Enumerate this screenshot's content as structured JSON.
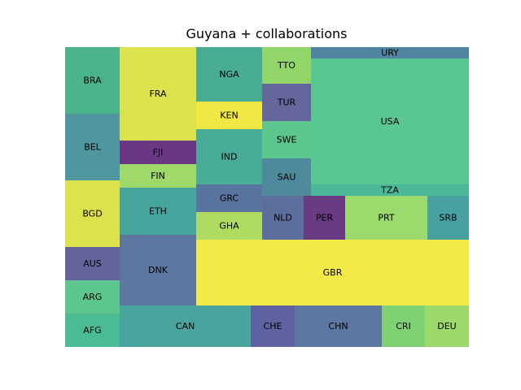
{
  "chart_data": {
    "type": "treemap",
    "title": "Guyana + collaborations",
    "cells": [
      {
        "label": "BRA",
        "value": 30,
        "color": "#4ab38c"
      },
      {
        "label": "BEL",
        "value": 30,
        "color": "#4f969e"
      },
      {
        "label": "BGD",
        "value": 30,
        "color": "#dbe24c"
      },
      {
        "label": "AUS",
        "value": 15,
        "color": "#63649c"
      },
      {
        "label": "ARG",
        "value": 15,
        "color": "#5cc68f"
      },
      {
        "label": "AFG",
        "value": 15,
        "color": "#4bbb93"
      },
      {
        "label": "FRA",
        "value": 43,
        "color": "#dbe24c"
      },
      {
        "label": "FJI",
        "value": 11,
        "color": "#6a3882"
      },
      {
        "label": "FIN",
        "value": 11,
        "color": "#9ed96a"
      },
      {
        "label": "ETH",
        "value": 22,
        "color": "#47a49c"
      },
      {
        "label": "DNK",
        "value": 33,
        "color": "#5e77a1"
      },
      {
        "label": "NGA",
        "value": 20,
        "color": "#47ac93"
      },
      {
        "label": "KEN",
        "value": 10,
        "color": "#f1e745"
      },
      {
        "label": "IND",
        "value": 20,
        "color": "#47ad98"
      },
      {
        "label": "GRC",
        "value": 10,
        "color": "#5a74a0"
      },
      {
        "label": "GHA",
        "value": 10,
        "color": "#afdc60"
      },
      {
        "label": "TTO",
        "value": 10,
        "color": "#92d66a"
      },
      {
        "label": "TUR",
        "value": 10,
        "color": "#65679c"
      },
      {
        "label": "SWE",
        "value": 10,
        "color": "#5dc68f"
      },
      {
        "label": "SAU",
        "value": 10,
        "color": "#4e8a9c"
      },
      {
        "label": "URY",
        "value": 5,
        "color": "#5184a1"
      },
      {
        "label": "USA",
        "value": 65,
        "color": "#5ac692"
      },
      {
        "label": "TZA",
        "value": 5,
        "color": "#4ab899"
      },
      {
        "label": "NLD",
        "value": 10,
        "color": "#5c6e9c"
      },
      {
        "label": "PER",
        "value": 10,
        "color": "#6a3a82"
      },
      {
        "label": "PRT",
        "value": 20,
        "color": "#9bda6c"
      },
      {
        "label": "SRB",
        "value": 10,
        "color": "#48a0a0"
      },
      {
        "label": "GBR",
        "value": 60,
        "color": "#f4ea47"
      },
      {
        "label": "CAN",
        "value": 30,
        "color": "#4aa49e"
      },
      {
        "label": "CHE",
        "value": 10,
        "color": "#5e62a0"
      },
      {
        "label": "CHN",
        "value": 20,
        "color": "#5e76a2"
      },
      {
        "label": "CRI",
        "value": 10,
        "color": "#7fd274"
      },
      {
        "label": "DEU",
        "value": 10,
        "color": "#9dd96a"
      }
    ]
  }
}
